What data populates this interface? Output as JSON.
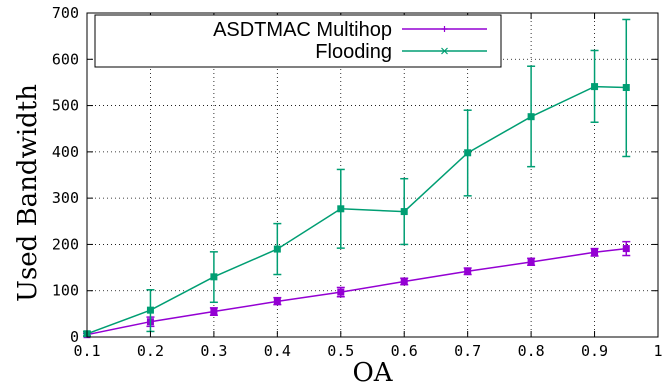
{
  "chart_data": {
    "type": "line",
    "xlabel": "OA",
    "ylabel": "Used Bandwidth",
    "xlim": [
      0.1,
      1
    ],
    "ylim": [
      0,
      700
    ],
    "xticks": [
      0.1,
      0.2,
      0.3,
      0.4,
      0.5,
      0.6,
      0.7,
      0.8,
      0.9,
      1
    ],
    "xtick_labels": [
      "0.1",
      "0.2",
      "0.3",
      "0.4",
      "0.5",
      "0.6",
      "0.7",
      "0.8",
      "0.9",
      "1"
    ],
    "yticks": [
      0,
      100,
      200,
      300,
      400,
      500,
      600,
      700
    ],
    "ytick_labels": [
      "0",
      "100",
      "200",
      "300",
      "400",
      "500",
      "600",
      "700"
    ],
    "grid": true,
    "legend_position": "top-left",
    "series": [
      {
        "name": "ASDTMAC Multihop",
        "color": "#9400d3",
        "marker": "plus",
        "x": [
          0.1,
          0.2,
          0.3,
          0.4,
          0.5,
          0.6,
          0.7,
          0.8,
          0.9,
          0.95
        ],
        "y": [
          5,
          33,
          55,
          77,
          97,
          120,
          142,
          162,
          183,
          191
        ],
        "err_low": [
          2,
          23,
          47,
          70,
          87,
          113,
          135,
          155,
          175,
          176
        ],
        "err_high": [
          8,
          43,
          63,
          85,
          107,
          127,
          149,
          170,
          191,
          206
        ]
      },
      {
        "name": "Flooding",
        "color": "#009e73",
        "marker": "cross",
        "x": [
          0.1,
          0.2,
          0.3,
          0.4,
          0.5,
          0.6,
          0.7,
          0.8,
          0.9,
          0.95
        ],
        "y": [
          7,
          58,
          130,
          190,
          277,
          271,
          398,
          476,
          541,
          539
        ],
        "err_low": [
          2,
          12,
          75,
          135,
          192,
          200,
          305,
          368,
          464,
          390
        ],
        "err_high": [
          12,
          102,
          184,
          245,
          362,
          342,
          490,
          585,
          619,
          686
        ]
      }
    ]
  }
}
